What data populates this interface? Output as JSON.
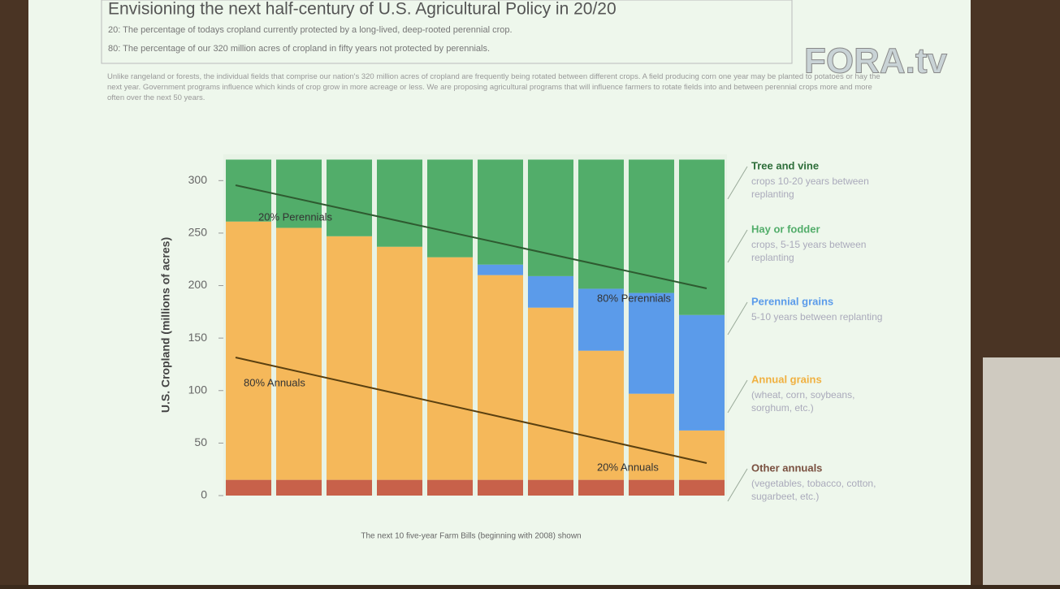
{
  "header": {
    "title": "Envisioning the next half-century of U.S. Agricultural Policy in 20/20",
    "lines": [
      "20: The percentage of todays cropland currently protected by a long-lived, deep-rooted perennial crop.",
      "80: The percentage of our 320 million acres of cropland in fifty years not protected by perennials."
    ],
    "paragraph": "Unlike rangeland or forests, the individual fields that comprise our nation's 320 million acres of cropland are frequently being rotated between different crops. A field producing corn one year may be planted to potatoes or hay the next year. Government programs influence which kinds of crop grow in more acreage or less. We are proposing agricultural programs that will influence farmers to rotate fields into and between perennial crops more and more often over the next 50 years."
  },
  "logo": "FORA.tv",
  "chart_data": {
    "type": "stacked-bar",
    "y_label": "U.S. Cropland (millions of acres)",
    "x_label": "The next 10 five-year Farm Bills (beginning with 2008) shown",
    "categories": [
      null,
      null,
      null,
      null,
      null,
      null,
      null,
      null,
      null,
      null
    ],
    "ylim": [
      0,
      325
    ],
    "yticks": [
      0,
      50,
      100,
      150,
      200,
      250,
      300
    ],
    "series": [
      {
        "name": "Other annuals",
        "detail": "(vegetables, tobacco, cotton, sugarbeet, etc.)",
        "color": "#c8614a",
        "values": [
          15,
          15,
          15,
          15,
          15,
          15,
          15,
          15,
          15,
          15
        ]
      },
      {
        "name": "Annual grains",
        "detail": "(wheat, corn, soybeans, sorghum, etc.)",
        "color": "#f5b85a",
        "values": [
          246,
          240,
          232,
          222,
          212,
          195,
          164,
          123,
          82,
          47
        ]
      },
      {
        "name": "Perennial grains",
        "detail": "5-10 years between replanting",
        "color": "#5b9bea",
        "values": [
          0,
          0,
          0,
          0,
          0,
          10,
          30,
          59,
          96,
          110
        ]
      },
      {
        "name": "Hay or fodder",
        "detail": "crops, 5-15 years between replanting",
        "color": "#52ad6a",
        "values": [
          59,
          65,
          73,
          83,
          93,
          100,
          111,
          123,
          127,
          148
        ]
      }
    ],
    "extra_legend": {
      "name": "Tree and vine",
      "detail": "crops 10-20 years between replanting"
    },
    "annotations": [
      "20% Perennials",
      "80% Annuals",
      "80% Perennials",
      "20% Annuals"
    ]
  }
}
